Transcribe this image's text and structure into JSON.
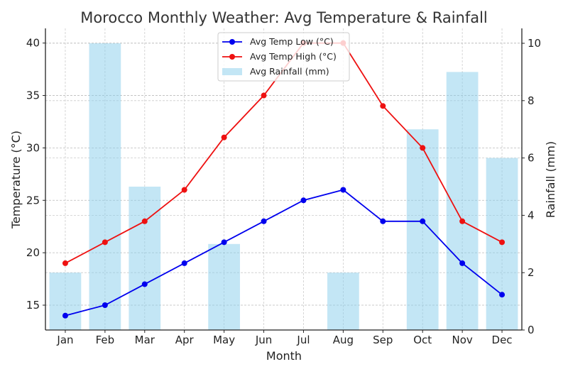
{
  "chart_data": {
    "type": "bar+line",
    "title": "Morocco Monthly Weather: Avg Temperature & Rainfall",
    "xlabel": "Month",
    "ylabel": "Temperature (°C)",
    "y2label": "Rainfall (mm)",
    "categories": [
      "Jan",
      "Feb",
      "Mar",
      "Apr",
      "May",
      "Jun",
      "Jul",
      "Aug",
      "Sep",
      "Oct",
      "Nov",
      "Dec"
    ],
    "ylim": [
      12.63,
      41.4
    ],
    "y2lim": [
      0,
      10.52
    ],
    "yticks": [
      15,
      20,
      25,
      30,
      35,
      40
    ],
    "y2ticks": [
      0,
      2,
      4,
      6,
      8,
      10
    ],
    "grid": true,
    "legend": {
      "position": "top-center"
    },
    "series": [
      {
        "name": "Avg Temp Low (°C)",
        "type": "line",
        "axis": "left",
        "color": "#0000ee",
        "values": [
          14,
          15,
          17,
          19,
          21,
          23,
          25,
          26,
          23,
          23,
          19,
          16
        ]
      },
      {
        "name": "Avg Temp High (°C)",
        "type": "line",
        "axis": "left",
        "color": "#ee1111",
        "values": [
          19,
          21,
          23,
          26,
          31,
          35,
          40,
          40,
          34,
          30,
          23,
          21
        ]
      },
      {
        "name": "Avg Rainfall (mm)",
        "type": "bar",
        "axis": "right",
        "color": "#87ceeb",
        "values": [
          2,
          10,
          5,
          0,
          3,
          0,
          0,
          2,
          0,
          7,
          9,
          6
        ]
      }
    ]
  }
}
